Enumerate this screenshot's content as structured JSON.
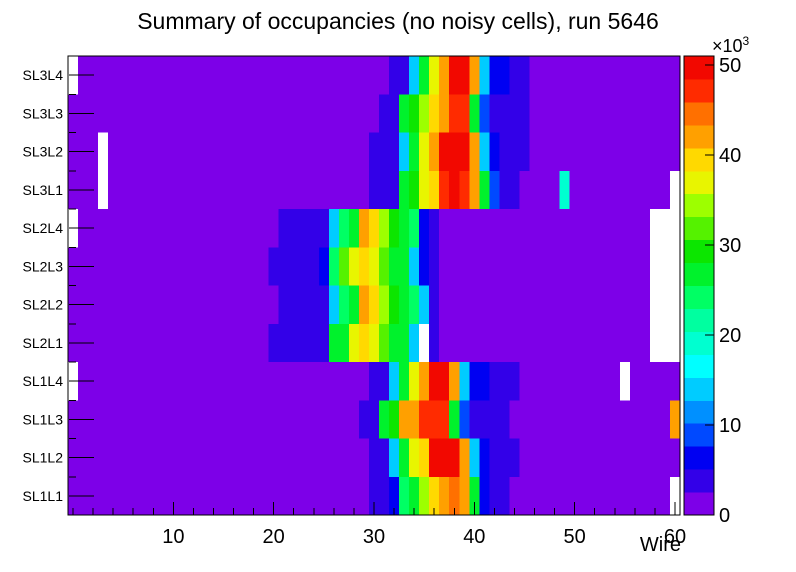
{
  "window": {
    "background": "#ffffff"
  },
  "chart_data": {
    "type": "heatmap",
    "title": "Summary of occupancies (no noisy cells), run 5646",
    "xlabel": "Wire",
    "x_ticks": [
      10,
      20,
      30,
      40,
      50,
      60
    ],
    "x_minor_tick_step": 2,
    "n_wires": 61,
    "grid": false,
    "y_categories_bottom_to_top": [
      "SL1L1",
      "SL1L2",
      "SL1L3",
      "SL1L4",
      "SL2L1",
      "SL2L2",
      "SL2L3",
      "SL2L4",
      "SL3L1",
      "SL3L2",
      "SL3L3",
      "SL3L4"
    ],
    "colorbar": {
      "multiplier": "×10",
      "exponent": "3",
      "ticks": [
        0,
        10,
        20,
        30,
        40,
        50
      ],
      "max": 51,
      "unit": "counts ×1000",
      "palette": [
        "#7d00e8",
        "#3300e8",
        "#0000f2",
        "#0049ff",
        "#0090ff",
        "#00ccff",
        "#00ffff",
        "#00ffd0",
        "#00ffa0",
        "#00ff64",
        "#00f22c",
        "#0ce600",
        "#55f200",
        "#9dff00",
        "#e8f500",
        "#ffd900",
        "#ffa000",
        "#ff7000",
        "#ff2b00",
        "#f20800"
      ]
    },
    "background_value": 1,
    "rows_top_to_bottom": [
      {
        "label": "SL3L4",
        "white_wires": [
          0
        ],
        "cells": {
          "32": 4,
          "33": 4,
          "34": 14,
          "35": 27,
          "36": 36,
          "37": 41,
          "38": 49,
          "39": 49,
          "40": 41,
          "41": 14,
          "42": 6,
          "43": 6,
          "44": 4,
          "45": 4
        }
      },
      {
        "label": "SL3L3",
        "white_wires": [],
        "cells": {
          "31": 4,
          "32": 4,
          "33": 26,
          "34": 29,
          "35": 34,
          "36": 39,
          "37": 41,
          "38": 46,
          "39": 46,
          "40": 26,
          "41": 9,
          "42": 4,
          "43": 4,
          "44": 4,
          "45": 4
        }
      },
      {
        "label": "SL3L2",
        "white_wires": [
          3
        ],
        "cells": {
          "30": 4,
          "31": 4,
          "32": 4,
          "33": 14,
          "34": 27,
          "35": 36,
          "36": 41,
          "37": 49,
          "38": 49,
          "39": 49,
          "40": 41,
          "41": 14,
          "42": 6,
          "43": 4,
          "44": 4,
          "45": 4
        }
      },
      {
        "label": "SL3L1",
        "white_wires": [
          3,
          60
        ],
        "cells": {
          "30": 4,
          "31": 4,
          "32": 4,
          "33": 26,
          "34": 29,
          "35": 36,
          "36": 39,
          "37": 46,
          "38": 49,
          "39": 46,
          "40": 41,
          "41": 26,
          "42": 9,
          "43": 4,
          "44": 4,
          "49": 18
        }
      },
      {
        "label": "SL2L4",
        "white_wires": [
          0,
          58,
          59,
          60
        ],
        "cells": {
          "21": 4,
          "22": 4,
          "23": 4,
          "24": 4,
          "25": 4,
          "26": 14,
          "27": 24,
          "28": 26,
          "29": 41,
          "30": 39,
          "31": 34,
          "32": 29,
          "33": 26,
          "34": 24,
          "35": 6,
          "36": 4
        }
      },
      {
        "label": "SL2L3",
        "white_wires": [
          58,
          59,
          60
        ],
        "cells": {
          "20": 4,
          "21": 4,
          "22": 4,
          "23": 4,
          "24": 4,
          "25": 6,
          "26": 24,
          "27": 31,
          "28": 36,
          "29": 39,
          "30": 36,
          "31": 31,
          "32": 26,
          "33": 26,
          "34": 14,
          "35": 6,
          "36": 4
        }
      },
      {
        "label": "SL2L2",
        "white_wires": [
          58,
          59,
          60
        ],
        "cells": {
          "21": 4,
          "22": 4,
          "23": 4,
          "24": 4,
          "25": 4,
          "26": 14,
          "27": 24,
          "28": 26,
          "29": 41,
          "30": 39,
          "31": 34,
          "32": 29,
          "33": 26,
          "34": 24,
          "35": 14,
          "36": 4
        }
      },
      {
        "label": "SL2L1",
        "white_wires": [
          35,
          58,
          59,
          60
        ],
        "cells": {
          "20": 4,
          "21": 4,
          "22": 4,
          "23": 4,
          "24": 4,
          "25": 4,
          "26": 26,
          "27": 26,
          "28": 36,
          "29": 39,
          "30": 36,
          "31": 31,
          "32": 26,
          "33": 26,
          "34": 14,
          "36": 4
        }
      },
      {
        "label": "SL1L4",
        "white_wires": [
          0,
          55
        ],
        "cells": {
          "30": 4,
          "31": 4,
          "32": 14,
          "33": 27,
          "34": 36,
          "35": 41,
          "36": 49,
          "37": 49,
          "38": 41,
          "39": 14,
          "40": 6,
          "41": 6,
          "42": 4,
          "43": 4,
          "44": 4
        }
      },
      {
        "label": "SL1L3",
        "white_wires": [],
        "cells": {
          "29": 4,
          "30": 4,
          "31": 26,
          "32": 29,
          "33": 41,
          "34": 41,
          "35": 46,
          "36": 46,
          "37": 46,
          "38": 26,
          "39": 9,
          "40": 4,
          "41": 4,
          "42": 4,
          "43": 4,
          "60": 41
        }
      },
      {
        "label": "SL1L2",
        "white_wires": [],
        "cells": {
          "30": 4,
          "31": 4,
          "32": 14,
          "33": 27,
          "34": 36,
          "35": 39,
          "36": 49,
          "37": 49,
          "38": 49,
          "39": 41,
          "40": 14,
          "41": 6,
          "42": 4,
          "43": 4,
          "44": 4
        }
      },
      {
        "label": "SL1L1",
        "white_wires": [
          60
        ],
        "cells": {
          "30": 4,
          "31": 4,
          "32": 6,
          "33": 24,
          "34": 26,
          "35": 34,
          "36": 39,
          "37": 41,
          "38": 44,
          "39": 41,
          "40": 26,
          "41": 6,
          "42": 4,
          "43": 4
        }
      }
    ]
  }
}
